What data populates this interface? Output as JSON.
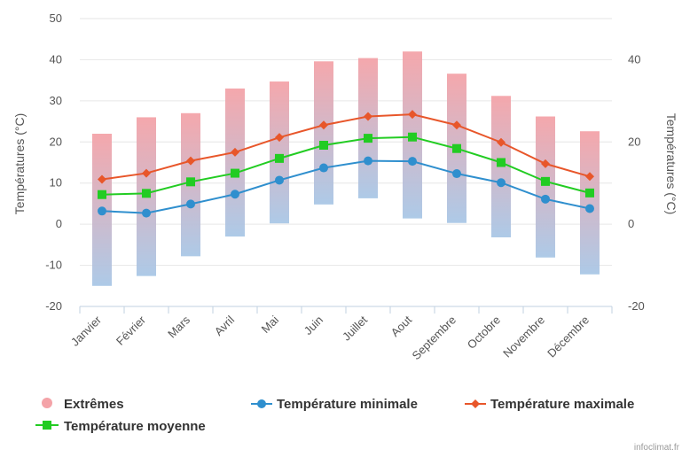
{
  "chart_data": {
    "type": "bar+line",
    "title": "",
    "categories": [
      "Janvier",
      "Février",
      "Mars",
      "Avril",
      "Mai",
      "Juin",
      "Juillet",
      "Aout",
      "Septembre",
      "Octobre",
      "Novembre",
      "Décembre"
    ],
    "ylabel_left": "Températures (°C)",
    "ylabel_right": "Températures (°C)",
    "ylim": [
      -20,
      50
    ],
    "yticks_left": [
      -20,
      -10,
      0,
      10,
      20,
      30,
      40,
      50
    ],
    "yticks_right": [
      -20,
      0,
      20,
      40
    ],
    "grid": true,
    "legend_position": "bottom",
    "series": [
      {
        "name": "Extrêmes",
        "kind": "range-bar",
        "color_top": "#f4a3a8",
        "color_bottom": "#a9c7e6",
        "low": [
          -15,
          -12.6,
          -7.8,
          -3,
          0.2,
          4.8,
          6.3,
          1.4,
          0.3,
          -3.2,
          -8.1,
          -12.2
        ],
        "high": [
          22,
          26,
          27,
          33,
          34.7,
          39.6,
          40.4,
          42,
          36.6,
          31.2,
          26.2,
          22.6
        ]
      },
      {
        "name": "Température minimale",
        "kind": "line",
        "marker": "circle",
        "color": "#2f8fce",
        "values": [
          3.2,
          2.7,
          4.9,
          7.3,
          10.7,
          13.7,
          15.4,
          15.3,
          12.3,
          10.1,
          6.1,
          3.8
        ]
      },
      {
        "name": "Température maximale",
        "kind": "line",
        "marker": "diamond",
        "color": "#e8562a",
        "values": [
          10.9,
          12.4,
          15.4,
          17.5,
          21.1,
          24.1,
          26.2,
          26.7,
          24.1,
          19.9,
          14.7,
          11.6
        ]
      },
      {
        "name": "Température moyenne",
        "kind": "line",
        "marker": "square",
        "color": "#22cc22",
        "values": [
          7.2,
          7.5,
          10.3,
          12.4,
          16,
          19.2,
          20.9,
          21.2,
          18.4,
          15,
          10.4,
          7.6
        ]
      }
    ]
  },
  "legend": {
    "extremes": "Extrêmes",
    "minimale": "Température minimale",
    "maximale": "Température maximale",
    "moyenne": "Température moyenne"
  },
  "credit": "infoclimat.fr"
}
